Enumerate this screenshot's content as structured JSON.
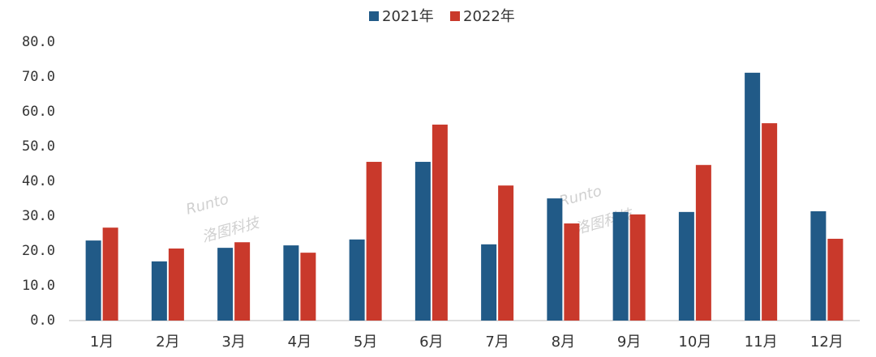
{
  "chart_data": {
    "type": "bar",
    "categories": [
      "1月",
      "2月",
      "3月",
      "4月",
      "5月",
      "6月",
      "7月",
      "8月",
      "9月",
      "10月",
      "11月",
      "12月"
    ],
    "series": [
      {
        "name": "2021年",
        "color": "#215a87",
        "values": [
          23.0,
          17.0,
          20.9,
          21.6,
          23.3,
          45.6,
          21.9,
          35.1,
          31.2,
          31.2,
          71.2,
          31.4
        ]
      },
      {
        "name": "2022年",
        "color": "#c9392b",
        "values": [
          26.7,
          20.7,
          22.5,
          19.5,
          45.6,
          56.3,
          38.8,
          27.9,
          30.5,
          44.7,
          56.7,
          23.5
        ]
      }
    ],
    "ylim": [
      0,
      80
    ],
    "yticks": [
      {
        "value": 0,
        "label": "0.0"
      },
      {
        "value": 10,
        "label": "10.0"
      },
      {
        "value": 20,
        "label": "20.0"
      },
      {
        "value": 30,
        "label": "30.0"
      },
      {
        "value": 40,
        "label": "40.0"
      },
      {
        "value": 50,
        "label": "50.0"
      },
      {
        "value": 60,
        "label": "60.0"
      },
      {
        "value": 70,
        "label": "70.0"
      },
      {
        "value": 80,
        "label": "80.0"
      }
    ],
    "grid": false,
    "legend": "top",
    "watermark": [
      "Runto",
      "洛图科技"
    ]
  }
}
